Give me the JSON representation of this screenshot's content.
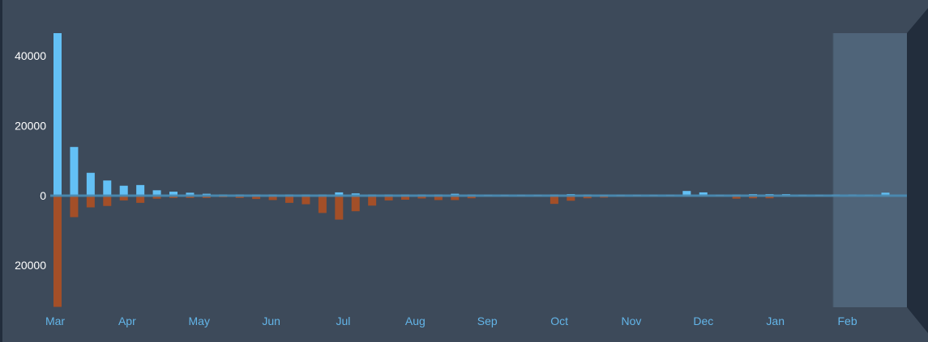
{
  "chart_data": {
    "type": "bar",
    "orientation": "diverging",
    "x_unit": "week",
    "month_labels": [
      "Mar",
      "Apr",
      "May",
      "Jun",
      "Jul",
      "Aug",
      "Sep",
      "Oct",
      "Nov",
      "Dec",
      "Jan",
      "Feb"
    ],
    "y_tick_labels": [
      "40000",
      "20000",
      "0",
      "20000"
    ],
    "y_tick_values": [
      40000,
      20000,
      0,
      -20000
    ],
    "ylim": [
      -32000,
      46500
    ],
    "grid": false,
    "legend": "none",
    "highlighted_range_label": "Feb",
    "series": [
      {
        "color": "#63c0f5",
        "values": [
          46500,
          13900,
          6500,
          4300,
          2800,
          3000,
          1500,
          1100,
          800,
          500,
          300,
          300,
          300,
          300,
          300,
          300,
          300,
          900,
          600,
          300,
          300,
          300,
          300,
          300,
          500,
          300,
          200,
          200,
          200,
          200,
          300,
          400,
          300,
          200,
          200,
          200,
          200,
          200,
          1300,
          900,
          200,
          300,
          400,
          400,
          400,
          200,
          200,
          300,
          300,
          200,
          800
        ]
      },
      {
        "color": "#a34f28",
        "values": [
          -31900,
          -6200,
          -3400,
          -3000,
          -1400,
          -2100,
          -900,
          -700,
          -700,
          -700,
          -500,
          -700,
          -1000,
          -1300,
          -2100,
          -2500,
          -5000,
          -6900,
          -4500,
          -2900,
          -1400,
          -1200,
          -850,
          -1300,
          -1300,
          -800,
          -300,
          -300,
          -300,
          -300,
          -2400,
          -1500,
          -800,
          -600,
          -400,
          -300,
          -300,
          -300,
          -300,
          -300,
          -300,
          -900,
          -800,
          -800,
          -300,
          -200,
          -200,
          -200,
          -200,
          -200,
          -300
        ]
      }
    ],
    "colors": {
      "background": "#3d4a5a",
      "highlight": "#4f6479",
      "zero_line": "#4a8db5",
      "side_panel": "#222d3c"
    }
  }
}
